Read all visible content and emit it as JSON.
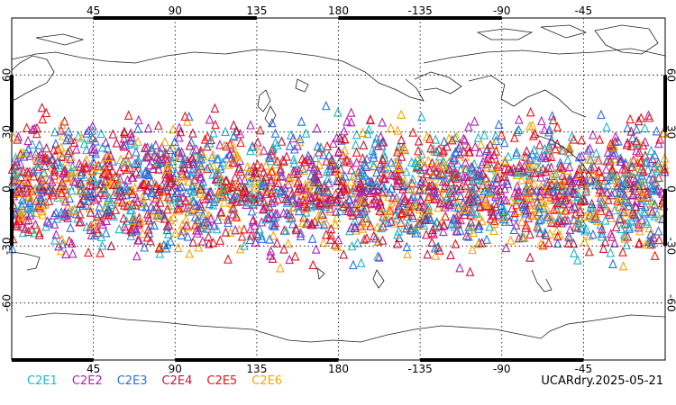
{
  "chart_data": {
    "type": "scatter",
    "projection": "equirectangular",
    "marker": "triangle-outline",
    "grid": "dotted",
    "lon_range": [
      0,
      360
    ],
    "lat_range": [
      -90,
      90
    ],
    "lon_tick_labels": [
      "45",
      "90",
      "135",
      "180",
      "-135",
      "-90",
      "-45"
    ],
    "lat_tick_labels": [
      "60",
      "30",
      "0",
      "-30",
      "-60"
    ],
    "data_extent": {
      "lat_min": -45,
      "lat_max": 45
    },
    "series": [
      {
        "name": "C2E1",
        "color": "#1fb5c8"
      },
      {
        "name": "C2E2",
        "color": "#b41fb4"
      },
      {
        "name": "C2E3",
        "color": "#2a6fe0"
      },
      {
        "name": "C2E4",
        "color": "#c8143c"
      },
      {
        "name": "C2E5",
        "color": "#f01414"
      },
      {
        "name": "C2E6",
        "color": "#f5a800"
      }
    ]
  },
  "annotation": "UCARdry.2025-05-21"
}
